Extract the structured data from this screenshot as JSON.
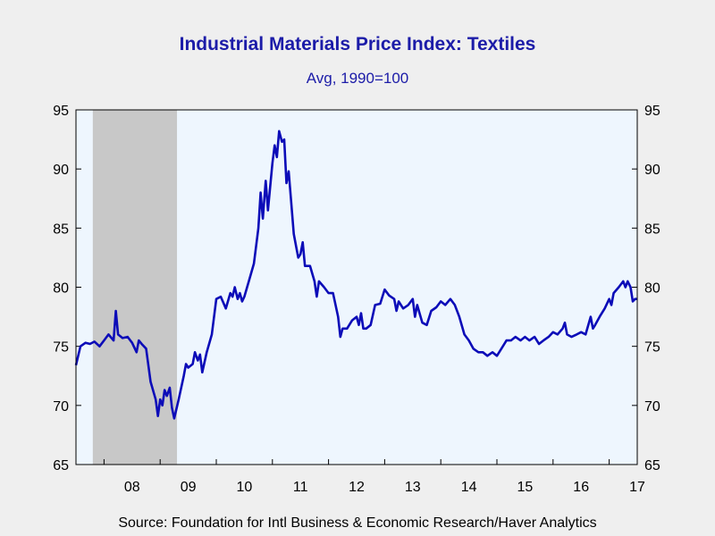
{
  "chart_data": {
    "type": "line",
    "title": "Industrial Materials Price Index: Textiles",
    "subtitle": "Avg, 1990=100",
    "source": "Source:  Foundation for Intl Business & Economic Research/Haver Analytics",
    "ylim": [
      65,
      95
    ],
    "yticks": [
      65,
      70,
      75,
      80,
      85,
      90,
      95
    ],
    "xlim": [
      2007.5,
      2017.5
    ],
    "xtick_labels": [
      {
        "x": 2008.5,
        "label": "08"
      },
      {
        "x": 2009.5,
        "label": "09"
      },
      {
        "x": 2010.5,
        "label": "10"
      },
      {
        "x": 2011.5,
        "label": "11"
      },
      {
        "x": 2012.5,
        "label": "12"
      },
      {
        "x": 2013.5,
        "label": "13"
      },
      {
        "x": 2014.5,
        "label": "14"
      },
      {
        "x": 2015.5,
        "label": "15"
      },
      {
        "x": 2016.5,
        "label": "16"
      },
      {
        "x": 2017.5,
        "label": "17"
      }
    ],
    "year_boundaries": [
      2008,
      2009,
      2010,
      2011,
      2012,
      2013,
      2014,
      2015,
      2016,
      2017
    ],
    "recession": {
      "start": 2007.8,
      "end": 2009.3
    },
    "grid": false,
    "legend": "none",
    "colors": {
      "line": "#0c0cb8",
      "plot_bg": "#eef6fe",
      "recession": "#c8c8c8",
      "title": "#1c1ca8",
      "page_bg": "#efefef"
    },
    "series": [
      {
        "values": [
          [
            2007.5,
            73.4
          ],
          [
            2007.58,
            75.0
          ],
          [
            2007.67,
            75.3
          ],
          [
            2007.75,
            75.2
          ],
          [
            2007.83,
            75.4
          ],
          [
            2007.92,
            75.0
          ],
          [
            2008.0,
            75.5
          ],
          [
            2008.08,
            76.0
          ],
          [
            2008.17,
            75.5
          ],
          [
            2008.21,
            78.0
          ],
          [
            2008.25,
            76.0
          ],
          [
            2008.33,
            75.7
          ],
          [
            2008.42,
            75.8
          ],
          [
            2008.5,
            75.3
          ],
          [
            2008.58,
            74.5
          ],
          [
            2008.62,
            75.5
          ],
          [
            2008.67,
            75.2
          ],
          [
            2008.75,
            74.8
          ],
          [
            2008.83,
            72.0
          ],
          [
            2008.92,
            70.5
          ],
          [
            2008.96,
            69.1
          ],
          [
            2009.0,
            70.5
          ],
          [
            2009.04,
            70.0
          ],
          [
            2009.08,
            71.3
          ],
          [
            2009.12,
            70.8
          ],
          [
            2009.17,
            71.5
          ],
          [
            2009.21,
            69.8
          ],
          [
            2009.25,
            68.9
          ],
          [
            2009.33,
            70.5
          ],
          [
            2009.42,
            72.5
          ],
          [
            2009.46,
            73.5
          ],
          [
            2009.5,
            73.2
          ],
          [
            2009.58,
            73.5
          ],
          [
            2009.62,
            74.5
          ],
          [
            2009.67,
            73.8
          ],
          [
            2009.71,
            74.3
          ],
          [
            2009.75,
            72.8
          ],
          [
            2009.83,
            74.5
          ],
          [
            2009.92,
            76.0
          ],
          [
            2010.0,
            79.0
          ],
          [
            2010.08,
            79.2
          ],
          [
            2010.17,
            78.2
          ],
          [
            2010.25,
            79.5
          ],
          [
            2010.29,
            79.2
          ],
          [
            2010.33,
            80.0
          ],
          [
            2010.38,
            79.0
          ],
          [
            2010.42,
            79.5
          ],
          [
            2010.46,
            78.8
          ],
          [
            2010.5,
            79.2
          ],
          [
            2010.58,
            80.5
          ],
          [
            2010.67,
            82.0
          ],
          [
            2010.75,
            85.0
          ],
          [
            2010.79,
            88.0
          ],
          [
            2010.83,
            85.8
          ],
          [
            2010.88,
            89.0
          ],
          [
            2010.92,
            86.5
          ],
          [
            2010.96,
            88.5
          ],
          [
            2011.0,
            90.5
          ],
          [
            2011.04,
            92.0
          ],
          [
            2011.08,
            91.0
          ],
          [
            2011.12,
            93.2
          ],
          [
            2011.17,
            92.3
          ],
          [
            2011.21,
            92.5
          ],
          [
            2011.25,
            88.8
          ],
          [
            2011.29,
            89.8
          ],
          [
            2011.33,
            87.5
          ],
          [
            2011.38,
            84.5
          ],
          [
            2011.42,
            83.5
          ],
          [
            2011.46,
            82.5
          ],
          [
            2011.5,
            82.8
          ],
          [
            2011.54,
            83.8
          ],
          [
            2011.58,
            81.8
          ],
          [
            2011.67,
            81.8
          ],
          [
            2011.75,
            80.5
          ],
          [
            2011.79,
            79.2
          ],
          [
            2011.83,
            80.5
          ],
          [
            2011.92,
            80.0
          ],
          [
            2012.0,
            79.5
          ],
          [
            2012.08,
            79.5
          ],
          [
            2012.17,
            77.5
          ],
          [
            2012.21,
            75.8
          ],
          [
            2012.25,
            76.5
          ],
          [
            2012.33,
            76.5
          ],
          [
            2012.42,
            77.2
          ],
          [
            2012.5,
            77.5
          ],
          [
            2012.54,
            76.8
          ],
          [
            2012.58,
            77.8
          ],
          [
            2012.62,
            76.5
          ],
          [
            2012.67,
            76.5
          ],
          [
            2012.75,
            76.8
          ],
          [
            2012.83,
            78.5
          ],
          [
            2012.92,
            78.6
          ],
          [
            2013.0,
            79.8
          ],
          [
            2013.08,
            79.3
          ],
          [
            2013.17,
            79.0
          ],
          [
            2013.21,
            78.0
          ],
          [
            2013.25,
            78.8
          ],
          [
            2013.33,
            78.2
          ],
          [
            2013.42,
            78.5
          ],
          [
            2013.5,
            79.0
          ],
          [
            2013.54,
            77.5
          ],
          [
            2013.58,
            78.5
          ],
          [
            2013.67,
            77.0
          ],
          [
            2013.75,
            76.8
          ],
          [
            2013.83,
            78.0
          ],
          [
            2013.92,
            78.3
          ],
          [
            2014.0,
            78.8
          ],
          [
            2014.08,
            78.5
          ],
          [
            2014.17,
            79.0
          ],
          [
            2014.25,
            78.5
          ],
          [
            2014.33,
            77.5
          ],
          [
            2014.42,
            76.0
          ],
          [
            2014.5,
            75.5
          ],
          [
            2014.58,
            74.8
          ],
          [
            2014.67,
            74.5
          ],
          [
            2014.75,
            74.5
          ],
          [
            2014.83,
            74.2
          ],
          [
            2014.92,
            74.5
          ],
          [
            2015.0,
            74.2
          ],
          [
            2015.08,
            74.8
          ],
          [
            2015.17,
            75.5
          ],
          [
            2015.25,
            75.5
          ],
          [
            2015.33,
            75.8
          ],
          [
            2015.42,
            75.5
          ],
          [
            2015.5,
            75.8
          ],
          [
            2015.58,
            75.5
          ],
          [
            2015.67,
            75.8
          ],
          [
            2015.75,
            75.2
          ],
          [
            2015.83,
            75.5
          ],
          [
            2015.92,
            75.8
          ],
          [
            2016.0,
            76.2
          ],
          [
            2016.08,
            76.0
          ],
          [
            2016.17,
            76.5
          ],
          [
            2016.21,
            77.0
          ],
          [
            2016.25,
            76.0
          ],
          [
            2016.33,
            75.8
          ],
          [
            2016.42,
            76.0
          ],
          [
            2016.5,
            76.2
          ],
          [
            2016.58,
            76.0
          ],
          [
            2016.67,
            77.5
          ],
          [
            2016.71,
            76.5
          ],
          [
            2016.75,
            76.8
          ],
          [
            2016.83,
            77.5
          ],
          [
            2016.92,
            78.2
          ],
          [
            2017.0,
            79.0
          ],
          [
            2017.04,
            78.5
          ],
          [
            2017.08,
            79.5
          ],
          [
            2017.17,
            80.0
          ],
          [
            2017.25,
            80.5
          ],
          [
            2017.29,
            80.0
          ],
          [
            2017.33,
            80.5
          ],
          [
            2017.38,
            80.0
          ],
          [
            2017.42,
            78.8
          ],
          [
            2017.46,
            79.0
          ],
          [
            2017.5,
            79.0
          ]
        ]
      }
    ]
  }
}
